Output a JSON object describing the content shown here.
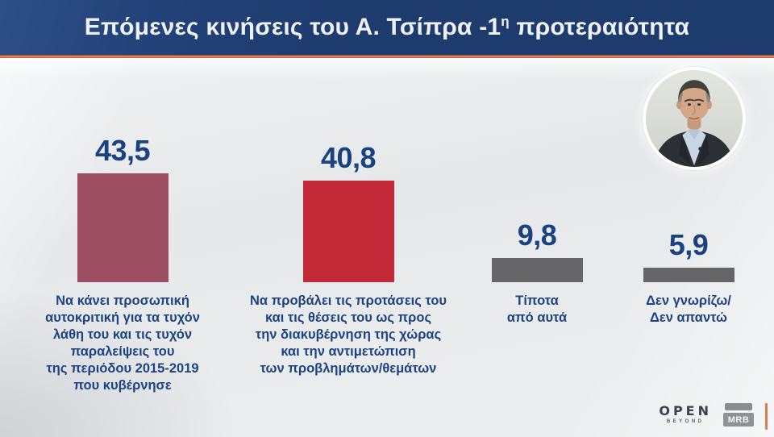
{
  "header": {
    "title_prefix": "Επόμενες κινήσεις του Α. Τσίπρα -1",
    "title_sup": "η",
    "title_suffix": " προτεραιότητα"
  },
  "chart_data": {
    "type": "bar",
    "title": "Επόμενες κινήσεις του Α. Τσίπρα - 1η προτεραιότητα",
    "unit": "percent",
    "ylim": [
      0,
      50
    ],
    "grid": false,
    "legend": "none",
    "categories": [
      "Να κάνει προσωπική αυτοκριτική για τα τυχόν λάθη του και τις τυχόν παραλείψεις του της περιόδου 2015-2019 που κυβέρνησε",
      "Να προβάλει τις προτάσεις του και τις θέσεις του ως προς την διακυβέρνηση της χώρας και την αντιμετώπιση των προβλημάτων/θεμάτων",
      "Τίποτα από αυτά",
      "Δεν γνωρίζω/Δεν απαντώ"
    ],
    "values": [
      43.5,
      40.8,
      9.8,
      5.9
    ],
    "value_labels": [
      "43,5",
      "40,8",
      "9,8",
      "5,9"
    ],
    "bar_colors": [
      "#9d4f61",
      "#c32936",
      "#666668",
      "#666668"
    ]
  },
  "bars": [
    {
      "value": 43.5,
      "value_label": "43,5",
      "color": "#9d4f61",
      "label": "Να κάνει προσωπική\nαυτοκριτική για τα τυχόν\nλάθη του και τις τυχόν\nπαραλείψεις του\nτης περιόδου 2015-2019\nπου κυβέρνησε"
    },
    {
      "value": 40.8,
      "value_label": "40,8",
      "color": "#c32936",
      "label": "Να προβάλει τις προτάσεις του\nκαι τις θέσεις του ως προς\nτην διακυβέρνηση της χώρας\nκαι την αντιμετώπιση\nτων προβλημάτων/θεμάτων"
    },
    {
      "value": 9.8,
      "value_label": "9,8",
      "color": "#666668",
      "label": "Τίποτα\nαπό αυτά"
    },
    {
      "value": 5.9,
      "value_label": "5,9",
      "color": "#666668",
      "label": "Δεν γνωρίζω/\nΔεν απαντώ"
    }
  ],
  "branding": {
    "open_word": "OPEN",
    "open_sub": "BEYOND",
    "mrb": "MRB"
  },
  "colors": {
    "header_bg": "#1d3b6d",
    "accent_orange": "#e2785a",
    "value_text": "#1a4182",
    "label_text": "#1c4384",
    "background": "#e8eaec"
  }
}
